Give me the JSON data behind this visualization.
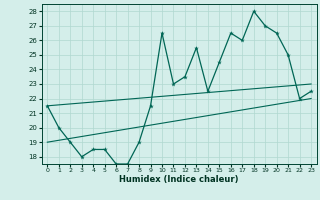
{
  "x": [
    0,
    1,
    2,
    3,
    4,
    5,
    6,
    7,
    8,
    9,
    10,
    11,
    12,
    13,
    14,
    15,
    16,
    17,
    18,
    19,
    20,
    21,
    22,
    23
  ],
  "y_main": [
    21.5,
    20.0,
    19.0,
    18.0,
    18.5,
    18.5,
    17.5,
    17.5,
    19.0,
    21.5,
    26.5,
    23.0,
    23.5,
    25.5,
    22.5,
    24.5,
    26.5,
    26.0,
    28.0,
    27.0,
    26.5,
    25.0,
    22.0,
    22.5
  ],
  "trend1_x": [
    0,
    23
  ],
  "trend1_y": [
    21.5,
    23.0
  ],
  "trend2_x": [
    0,
    23
  ],
  "trend2_y": [
    19.0,
    22.0
  ],
  "bg_color": "#d4eeea",
  "grid_color": "#b0d8d0",
  "line_color": "#006655",
  "xlabel": "Humidex (Indice chaleur)",
  "ylim": [
    17.5,
    28.5
  ],
  "xlim": [
    -0.5,
    23.5
  ],
  "yticks": [
    18,
    19,
    20,
    21,
    22,
    23,
    24,
    25,
    26,
    27,
    28
  ],
  "xticks": [
    0,
    1,
    2,
    3,
    4,
    5,
    6,
    7,
    8,
    9,
    10,
    11,
    12,
    13,
    14,
    15,
    16,
    17,
    18,
    19,
    20,
    21,
    22,
    23
  ]
}
